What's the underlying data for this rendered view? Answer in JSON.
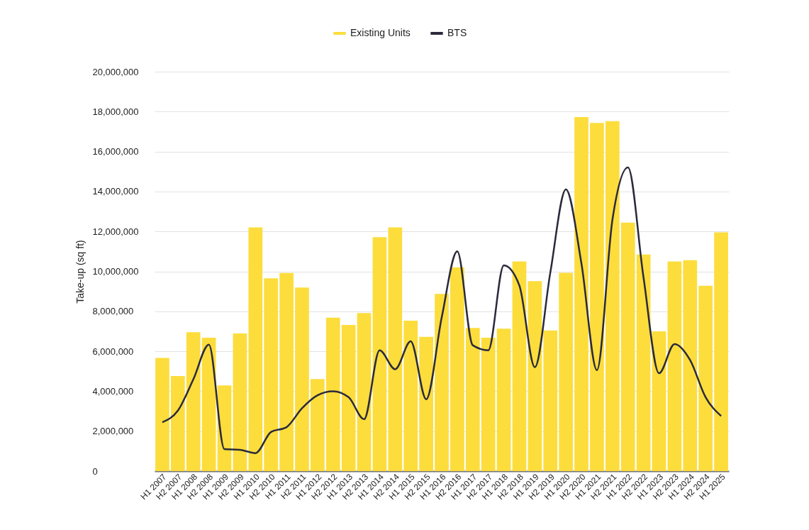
{
  "chart_data": {
    "type": "bar",
    "ylabel": "Take-up (sq ft)",
    "categories": [
      "H1 2007",
      "H2 2007",
      "H1 2008",
      "H2 2008",
      "H1 2009",
      "H2 2009",
      "H1 2010",
      "H2 2010",
      "H1 2011",
      "H2 2011",
      "H1 2012",
      "H2 2012",
      "H1 2013",
      "H2 2013",
      "H1 2014",
      "H2 2014",
      "H1 2015",
      "H2 2015",
      "H1 2016",
      "H2 2016",
      "H1 2017",
      "H2 2017",
      "H1 2018",
      "H2 2018",
      "H1 2019",
      "H2 2019",
      "H1 2020",
      "H2 2020",
      "H1 2021",
      "H2 2021",
      "H1 2022",
      "H2 2022",
      "H1 2023",
      "H2 2023",
      "H1 2024",
      "H2 2024",
      "H1 2025"
    ],
    "series": [
      {
        "name": "Existing Units",
        "color": "#fcdd3c",
        "values": [
          5670000,
          4760000,
          6950000,
          6680000,
          4290000,
          6890000,
          12200000,
          9650000,
          9920000,
          9190000,
          4610000,
          7680000,
          7320000,
          7910000,
          11710000,
          12200000,
          7530000,
          6720000,
          8870000,
          10200000,
          7170000,
          6680000,
          7130000,
          10500000,
          9510000,
          7040000,
          9930000,
          17730000,
          17430000,
          17520000,
          12440000,
          10840000,
          7000000,
          10500000,
          10560000,
          9280000,
          11950000
        ]
      },
      {
        "name": "BTS",
        "type": "line",
        "color": "#2a2a3c",
        "values": [
          2450000,
          3030000,
          4600000,
          6330000,
          1100000,
          1070000,
          900000,
          1960000,
          2200000,
          3150000,
          3800000,
          4000000,
          3700000,
          2600000,
          6050000,
          5100000,
          6500000,
          3600000,
          7700000,
          11000000,
          6300000,
          6050000,
          10300000,
          9300000,
          5200000,
          9960000,
          14100000,
          10400000,
          5050000,
          12600000,
          15200000,
          9700000,
          4900000,
          6360000,
          5560000,
          3700000,
          2760000
        ]
      }
    ],
    "ylim": [
      0,
      20000000
    ],
    "yticks": [
      0,
      {
        "value": 2000000,
        "label": "2,000,000"
      },
      {
        "value": 4000000,
        "label": "4,000,000"
      },
      {
        "value": 6000000,
        "label": "6,000,000"
      },
      {
        "value": 8000000,
        "label": "8,000,000"
      },
      {
        "value": 10000000,
        "label": "10,000,000"
      },
      {
        "value": 12000000,
        "label": "12,000,000"
      },
      {
        "value": 14000000,
        "label": "14,000,000"
      },
      {
        "value": 16000000,
        "label": "16,000,000"
      },
      {
        "value": 18000000,
        "label": "18,000,000"
      },
      {
        "value": 20000000,
        "label": "20,000,000"
      }
    ],
    "grid": "y",
    "legend": "top"
  }
}
